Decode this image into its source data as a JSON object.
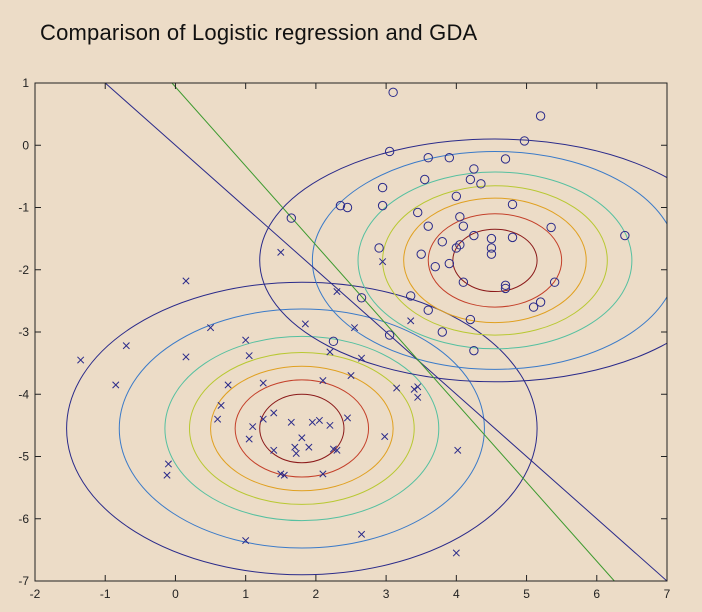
{
  "chart_data": {
    "type": "scatter",
    "title": "Comparison of Logistic regression and GDA",
    "xlabel": "",
    "ylabel": "",
    "xlim": [
      -2,
      7
    ],
    "ylim": [
      -7,
      1
    ],
    "xticks": [
      "-2",
      "-1",
      "0",
      "1",
      "2",
      "3",
      "4",
      "5",
      "6",
      "7"
    ],
    "yticks": [
      "1",
      "0",
      "-1",
      "-2",
      "-3",
      "-4",
      "-5",
      "-6",
      "-7"
    ],
    "grid": false,
    "series": [
      {
        "marker": "x",
        "color": "#2a2a8a",
        "points": [
          [
            -1.35,
            -3.45
          ],
          [
            -0.85,
            -3.85
          ],
          [
            -0.7,
            -3.22
          ],
          [
            -0.1,
            -5.12
          ],
          [
            -0.12,
            -5.3
          ],
          [
            0.15,
            -2.18
          ],
          [
            0.15,
            -3.4
          ],
          [
            0.5,
            -2.93
          ],
          [
            0.6,
            -4.4
          ],
          [
            0.65,
            -4.18
          ],
          [
            0.75,
            -3.85
          ],
          [
            1.0,
            -3.13
          ],
          [
            1.05,
            -3.38
          ],
          [
            1.1,
            -4.52
          ],
          [
            1.05,
            -4.72
          ],
          [
            1.25,
            -3.82
          ],
          [
            1.25,
            -4.4
          ],
          [
            1.4,
            -4.3
          ],
          [
            1.4,
            -4.9
          ],
          [
            1.5,
            -1.72
          ],
          [
            1.5,
            -5.28
          ],
          [
            1.55,
            -5.3
          ],
          [
            1.65,
            -4.45
          ],
          [
            1.7,
            -4.85
          ],
          [
            1.72,
            -4.95
          ],
          [
            1.8,
            -4.7
          ],
          [
            1.85,
            -2.87
          ],
          [
            1.9,
            -4.85
          ],
          [
            1.95,
            -4.45
          ],
          [
            2.05,
            -4.42
          ],
          [
            2.1,
            -3.78
          ],
          [
            2.1,
            -5.28
          ],
          [
            2.2,
            -3.32
          ],
          [
            2.2,
            -4.5
          ],
          [
            2.25,
            -4.88
          ],
          [
            2.3,
            -2.35
          ],
          [
            2.3,
            -4.9
          ],
          [
            2.45,
            -4.38
          ],
          [
            2.5,
            -3.7
          ],
          [
            2.55,
            -2.93
          ],
          [
            2.65,
            -3.42
          ],
          [
            2.65,
            -6.25
          ],
          [
            2.95,
            -1.87
          ],
          [
            2.98,
            -4.68
          ],
          [
            3.15,
            -3.9
          ],
          [
            3.35,
            -2.82
          ],
          [
            3.4,
            -3.92
          ],
          [
            3.45,
            -4.05
          ],
          [
            3.45,
            -3.88
          ],
          [
            4.02,
            -4.9
          ],
          [
            4.0,
            -6.55
          ],
          [
            1.0,
            -6.35
          ]
        ]
      },
      {
        "marker": "o",
        "color": "#2a2a8a",
        "points": [
          [
            3.1,
            0.85
          ],
          [
            5.2,
            0.47
          ],
          [
            4.97,
            0.07
          ],
          [
            3.05,
            -0.1
          ],
          [
            3.6,
            -0.2
          ],
          [
            3.9,
            -0.2
          ],
          [
            4.25,
            -0.38
          ],
          [
            4.7,
            -0.22
          ],
          [
            2.95,
            -0.68
          ],
          [
            3.55,
            -0.55
          ],
          [
            4.2,
            -0.55
          ],
          [
            4.35,
            -0.62
          ],
          [
            2.35,
            -0.97
          ],
          [
            2.45,
            -1.0
          ],
          [
            2.95,
            -0.97
          ],
          [
            3.45,
            -1.08
          ],
          [
            4.0,
            -0.82
          ],
          [
            4.8,
            -0.95
          ],
          [
            4.05,
            -1.15
          ],
          [
            3.6,
            -1.3
          ],
          [
            4.1,
            -1.3
          ],
          [
            5.35,
            -1.32
          ],
          [
            2.9,
            -1.65
          ],
          [
            3.5,
            -1.75
          ],
          [
            3.8,
            -1.55
          ],
          [
            4.0,
            -1.65
          ],
          [
            4.05,
            -1.6
          ],
          [
            4.25,
            -1.45
          ],
          [
            4.5,
            -1.5
          ],
          [
            4.5,
            -1.65
          ],
          [
            4.5,
            -1.75
          ],
          [
            4.8,
            -1.48
          ],
          [
            3.7,
            -1.95
          ],
          [
            3.9,
            -1.9
          ],
          [
            4.1,
            -2.2
          ],
          [
            4.7,
            -2.25
          ],
          [
            4.7,
            -2.3
          ],
          [
            5.4,
            -2.2
          ],
          [
            6.4,
            -1.45
          ],
          [
            3.35,
            -2.42
          ],
          [
            3.6,
            -2.65
          ],
          [
            4.2,
            -2.8
          ],
          [
            5.1,
            -2.6
          ],
          [
            5.2,
            -2.52
          ],
          [
            3.8,
            -3.0
          ],
          [
            4.25,
            -3.3
          ],
          [
            2.65,
            -2.45
          ],
          [
            3.05,
            -3.05
          ],
          [
            2.25,
            -3.15
          ],
          [
            1.65,
            -1.17
          ]
        ]
      }
    ],
    "lines": [
      {
        "name": "",
        "color": "#2a2a8a",
        "p1": [
          -1.0,
          1.0
        ],
        "p2": [
          7.0,
          -7.0
        ]
      },
      {
        "name": "",
        "color": "#3c9a2e",
        "p1": [
          -0.05,
          1.0
        ],
        "p2": [
          6.25,
          -7.0
        ]
      }
    ],
    "contours": [
      {
        "center": [
          1.8,
          -4.55
        ],
        "radii_x": [
          0.6,
          0.95,
          1.3,
          1.6,
          1.95,
          2.6,
          3.35
        ],
        "radii_y": [
          0.55,
          0.78,
          1.0,
          1.22,
          1.48,
          1.92,
          2.35
        ],
        "colors": [
          "#8b1a1a",
          "#c4402a",
          "#e0a020",
          "#b8c832",
          "#55c0a0",
          "#3a7ac8",
          "#2a2a8a"
        ]
      },
      {
        "center": [
          4.55,
          -1.85
        ],
        "radii_x": [
          0.6,
          0.95,
          1.3,
          1.6,
          1.95,
          2.6,
          3.35
        ],
        "radii_y": [
          0.5,
          0.75,
          1.0,
          1.2,
          1.42,
          1.75,
          1.95
        ],
        "colors": [
          "#8b1a1a",
          "#c4402a",
          "#e0a020",
          "#b8c832",
          "#55c0a0",
          "#3a7ac8",
          "#2a2a8a"
        ]
      }
    ]
  }
}
